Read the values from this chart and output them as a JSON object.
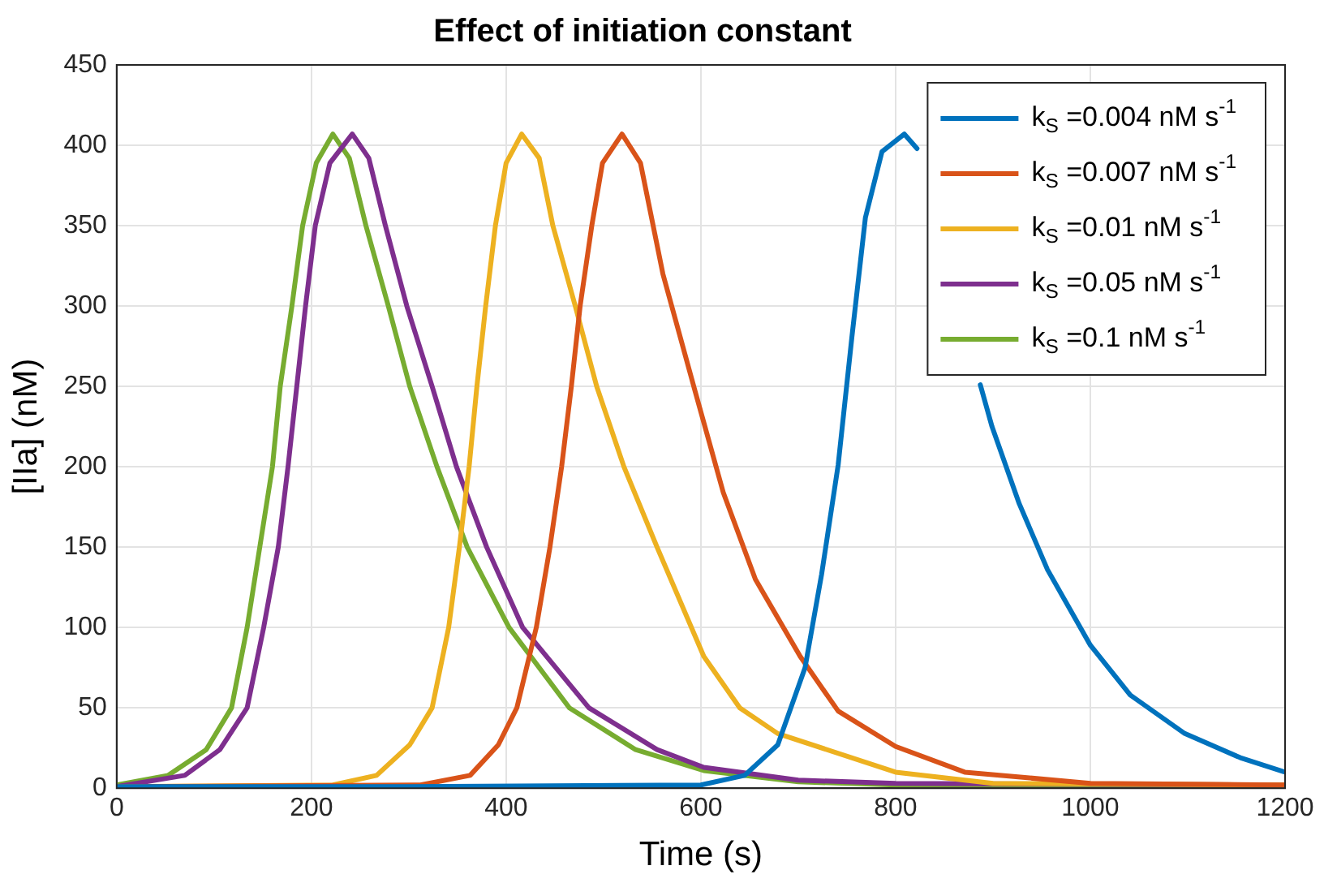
{
  "chart_data": {
    "type": "line",
    "title": "Effect of initiation constant",
    "xlabel": "Time (s)",
    "ylabel": "[IIa] (nM)",
    "xlim": [
      0,
      1200
    ],
    "xticks": [
      0,
      200,
      400,
      600,
      800,
      1000,
      1200
    ],
    "ylim": [
      0,
      450
    ],
    "yticks": [
      0,
      50,
      100,
      150,
      200,
      250,
      300,
      350,
      400,
      450
    ],
    "grid": true,
    "legend": "top right",
    "marker": "none",
    "line_style": "solid",
    "series": [
      {
        "name": "k$_{S}$ =0.004 nM s$^{-1}$",
        "color": "#0072bd",
        "x": [
          0,
          300,
          600,
          645,
          679,
          707,
          724,
          741,
          755,
          769,
          786,
          809,
          822,
          850,
          887,
          899,
          927,
          956,
          1000,
          1041,
          1097,
          1154,
          1200
        ],
        "values": [
          1,
          1,
          2,
          8,
          27,
          75,
          133,
          201,
          280,
          355,
          396,
          407,
          398,
          null,
          251,
          225,
          177,
          136,
          89,
          58,
          34,
          19,
          10
        ]
      },
      {
        "name": "k$_{S}$ =0.007 nM s$^{-1}$",
        "color": "#d95319",
        "x": [
          0,
          312,
          363,
          392,
          411,
          431,
          445,
          457,
          467,
          476,
          488,
          499,
          519,
          538,
          561,
          595,
          623,
          656,
          702,
          741,
          800,
          871,
          1000,
          1200
        ],
        "values": [
          1,
          2,
          8,
          27,
          50,
          100,
          150,
          200,
          250,
          300,
          350,
          389,
          407,
          389,
          320,
          245,
          184,
          130,
          82,
          48,
          26,
          10,
          3,
          2
        ]
      },
      {
        "name": "k$_{S}$ =0.01 nM s$^{-1}$",
        "color": "#edb120",
        "x": [
          0,
          222,
          267,
          301,
          324,
          341,
          352,
          362,
          370,
          379,
          389,
          400,
          416,
          434,
          448,
          471,
          493,
          521,
          555,
          603,
          640,
          679,
          800,
          900,
          1200
        ],
        "values": [
          1,
          2,
          8,
          27,
          50,
          100,
          150,
          200,
          250,
          300,
          350,
          389,
          407,
          392,
          350,
          300,
          250,
          200,
          150,
          82,
          50,
          34,
          10,
          3,
          2
        ]
      },
      {
        "name": "k$_{S}$ =0.05 nM s$^{-1}$",
        "color": "#7e2f8e",
        "x": [
          0,
          70,
          106,
          134,
          151,
          166,
          176,
          185,
          194,
          204,
          219,
          242,
          259,
          276,
          298,
          324,
          349,
          380,
          417,
          485,
          555,
          603,
          700,
          800,
          1200
        ],
        "values": [
          1,
          8,
          24,
          50,
          100,
          150,
          200,
          250,
          300,
          350,
          389,
          407,
          392,
          350,
          300,
          250,
          200,
          150,
          100,
          50,
          24,
          13,
          5,
          3,
          2
        ]
      },
      {
        "name": "k$_{S}$ =0.1 nM s$^{-1}$",
        "color": "#77ac30",
        "x": [
          0,
          53,
          92,
          118,
          134,
          147,
          160,
          168,
          180,
          191,
          205,
          222,
          239,
          256,
          279,
          301,
          329,
          360,
          403,
          465,
          533,
          603,
          700,
          800,
          1200
        ],
        "values": [
          2,
          8,
          24,
          50,
          100,
          150,
          200,
          250,
          300,
          350,
          389,
          407,
          392,
          350,
          300,
          250,
          200,
          150,
          100,
          50,
          24,
          11,
          4,
          2,
          2
        ]
      }
    ]
  }
}
